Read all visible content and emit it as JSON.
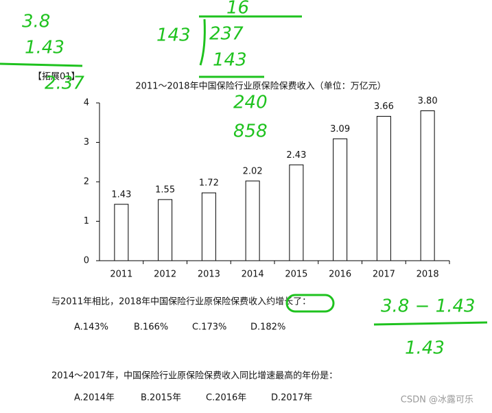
{
  "tag": "【拓展01】",
  "chart_data": {
    "type": "bar",
    "title": "2011～2018年中国保险行业原保险保费收入（单位：万亿元）",
    "categories": [
      "2011",
      "2012",
      "2013",
      "2014",
      "2015",
      "2016",
      "2017",
      "2018"
    ],
    "values": [
      1.43,
      1.55,
      1.72,
      2.02,
      2.43,
      3.09,
      3.66,
      3.8
    ],
    "value_labels": [
      "1.43",
      "1.55",
      "1.72",
      "2.02",
      "2.43",
      "3.09",
      "3.66",
      "3.80"
    ],
    "color": "#ffffff",
    "ylim": [
      0,
      4
    ],
    "yticks": [
      0,
      1,
      2,
      3,
      4
    ],
    "grid": false
  },
  "questions": [
    {
      "text": "与2011年相比，2018年中国保险行业原保险保费收入约增长了：",
      "options": [
        "A.143%",
        "B.166%",
        "C.173%",
        "D.182%"
      ]
    },
    {
      "text": "2014～2017年，中国保险行业原保险保费收入同比增速最高的年份是：",
      "options": [
        "A.2014年",
        "B.2015年",
        "C.2016年",
        "D.2017年"
      ]
    }
  ],
  "handwriting": [
    "3.8",
    "1.43",
    "2.37",
    "16",
    "143",
    "237",
    "143",
    "240",
    "858",
    "3.8 − 1.43",
    "1.43"
  ],
  "watermark": "CSDN @冰露可乐"
}
